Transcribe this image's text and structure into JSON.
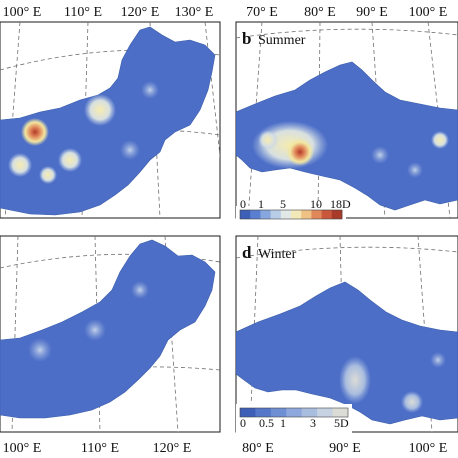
{
  "figure": {
    "panels": [
      {
        "id": "a",
        "label": "",
        "season": "",
        "top_ticks": [
          "100° E",
          "110° E",
          "120° E",
          "130° E"
        ]
      },
      {
        "id": "b",
        "label": "b",
        "season": "Summer",
        "top_ticks": [
          "70° E",
          "80° E",
          "90° E",
          "100° E"
        ],
        "colorbar": {
          "tick_labels": [
            "0",
            "1",
            "5",
            "10",
            "18D"
          ],
          "colors": [
            "#3e5fb8",
            "#5b7fd0",
            "#86a6dd",
            "#b8cde8",
            "#e2e8e6",
            "#f3e8b8",
            "#efc184",
            "#e0875a",
            "#c9573c",
            "#a83a2a"
          ]
        }
      },
      {
        "id": "c",
        "label": "",
        "season": "",
        "bottom_ticks": [
          "100° E",
          "110° E",
          "120° E"
        ]
      },
      {
        "id": "d",
        "label": "d",
        "season": "Winter",
        "bottom_ticks": [
          "80° E",
          "90° E",
          "100° E"
        ],
        "colorbar": {
          "tick_labels": [
            "0",
            "0.5",
            "1",
            "3",
            "5D"
          ],
          "colors": [
            "#3e5fb8",
            "#5577c9",
            "#6f8fd4",
            "#8ea7dc",
            "#a9bddf",
            "#c6d2e1",
            "#dcdcd6"
          ]
        }
      }
    ],
    "colors": {
      "land_base": "#4d6ec7",
      "land_light": "#7a96d8",
      "hot_yellow": "#f2e6a0",
      "hot_orange": "#e8a06a",
      "hot_red": "#c24a34",
      "frame": "#1a1a1a"
    }
  }
}
